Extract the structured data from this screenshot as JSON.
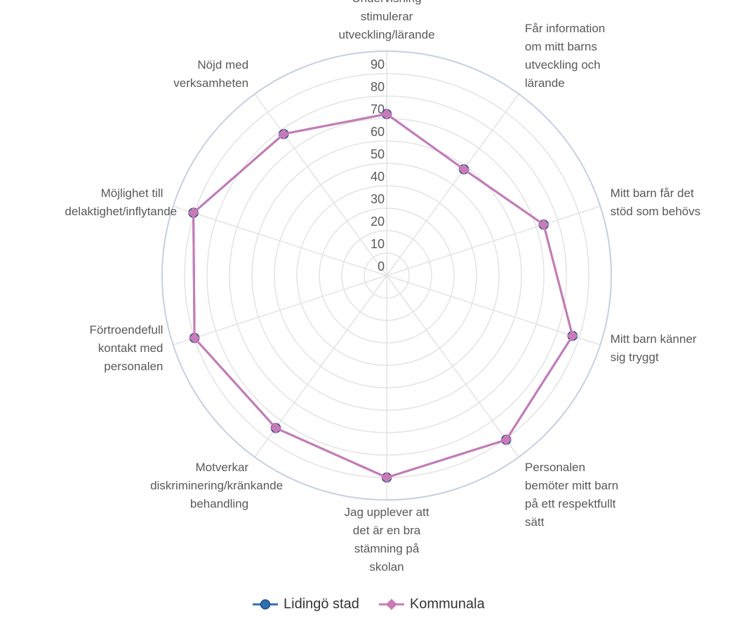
{
  "chart_data": {
    "type": "radar",
    "categories": [
      "Undervisning stimulerar utveckling/lärande",
      "Får information om mitt barns utveckling och lärande",
      "Mitt barn får det stöd som behövs",
      "Mitt barn känner sig tryggt",
      "Personalen bemöter mitt barn på ett respektfullt sätt",
      "Jag upplever att det är en bra stämning på skolan",
      "Motverkar diskriminering/kränkande behandling",
      "Förtroendefull kontakt med personalen",
      "Möjlighet till delaktighet/inflytande",
      "Nöjd med verksamheten"
    ],
    "series": [
      {
        "name": "Lidingö stad",
        "color": "#2e6fb0",
        "marker": "circle",
        "values": [
          72,
          58.5,
          73.5,
          87,
          90.5,
          90,
          84,
          90,
          90.5,
          78
        ]
      },
      {
        "name": "Kommunala",
        "color": "#c87bb6",
        "marker": "diamond",
        "values": [
          72,
          58.5,
          73.5,
          87,
          90.5,
          90,
          84,
          90,
          90.5,
          78
        ]
      }
    ],
    "ylim": [
      0,
      100
    ],
    "yticks": [
      0,
      10,
      20,
      30,
      40,
      50,
      60,
      70,
      80,
      90
    ],
    "grid": true,
    "legend": "bottom"
  }
}
